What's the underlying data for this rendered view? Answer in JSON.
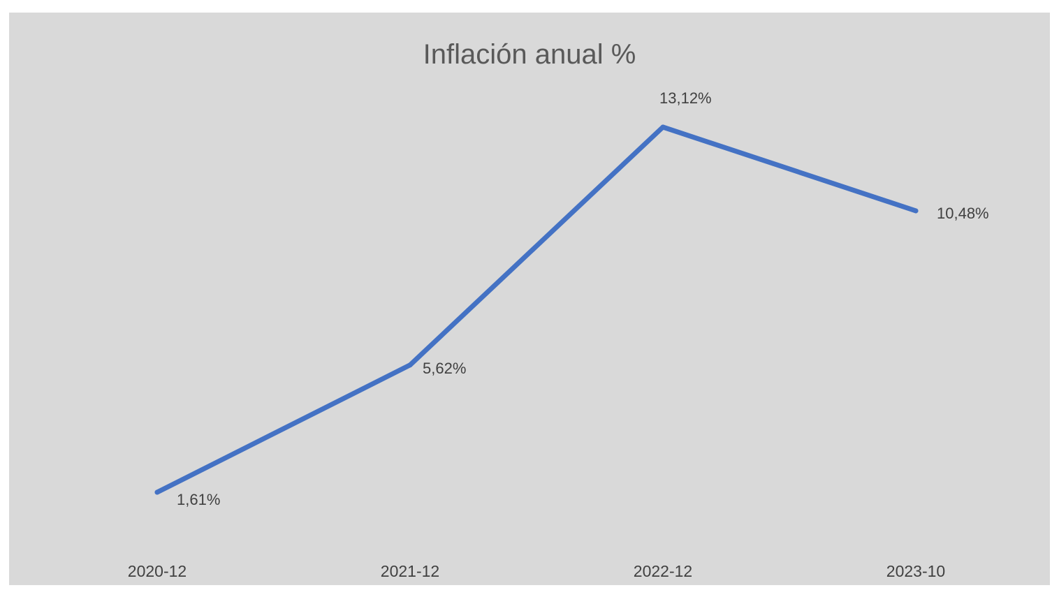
{
  "chart_data": {
    "type": "line",
    "title": "Inflación anual %",
    "xlabel": "",
    "ylabel": "",
    "categories": [
      "2020-12",
      "2021-12",
      "2022-12",
      "2023-10"
    ],
    "series": [
      {
        "values": [
          1.61,
          5.62,
          13.12,
          10.48
        ],
        "data_labels": [
          "1,61%",
          "5,62%",
          "13,12%",
          "10,48%"
        ],
        "color": "#4472c4"
      }
    ],
    "ylim": [
      0,
      14
    ],
    "grid": false,
    "legend": "none"
  }
}
